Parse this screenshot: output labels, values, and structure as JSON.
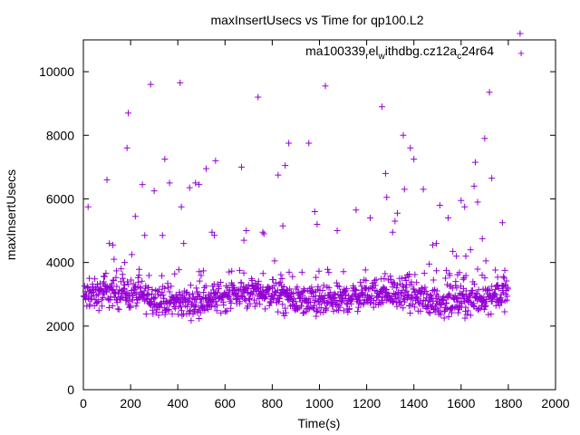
{
  "chart_data": {
    "type": "scatter",
    "title": "maxInsertUsecs vs Time for qp100.L2",
    "xlabel": "Time(s)",
    "ylabel": "maxInsertUsecs",
    "xlim": [
      0,
      2000
    ],
    "ylim": [
      0,
      11000
    ],
    "x_ticks": [
      "0",
      "200",
      "400",
      "600",
      "800",
      "1000",
      "1200",
      "1400",
      "1600",
      "1800",
      "2000"
    ],
    "y_ticks": [
      "0",
      "2000",
      "4000",
      "6000",
      "8000",
      "10000"
    ],
    "grid": false,
    "legend_position": "top-right",
    "marker": "plus",
    "series": [
      {
        "name": "ma100339",
        "name_parts": [
          "ma100339",
          "r",
          "el",
          "w",
          "ithdbg.cz12a",
          "c",
          "24r64"
        ],
        "color": "#9400d3",
        "points": [
          [
            20,
            5750
          ],
          [
            100,
            6600
          ],
          [
            110,
            4600
          ],
          [
            125,
            4550
          ],
          [
            130,
            4100
          ],
          [
            160,
            3800
          ],
          [
            175,
            4000
          ],
          [
            185,
            7600
          ],
          [
            190,
            8700
          ],
          [
            205,
            4250
          ],
          [
            220,
            5450
          ],
          [
            250,
            6450
          ],
          [
            260,
            4850
          ],
          [
            285,
            9600
          ],
          [
            300,
            6250
          ],
          [
            335,
            4850
          ],
          [
            345,
            7250
          ],
          [
            365,
            6500
          ],
          [
            410,
            9650
          ],
          [
            415,
            5750
          ],
          [
            425,
            4600
          ],
          [
            450,
            6350
          ],
          [
            475,
            6500
          ],
          [
            490,
            6450
          ],
          [
            520,
            6950
          ],
          [
            545,
            4950
          ],
          [
            555,
            4850
          ],
          [
            560,
            7200
          ],
          [
            670,
            7000
          ],
          [
            680,
            4700
          ],
          [
            690,
            5000
          ],
          [
            740,
            9200
          ],
          [
            760,
            4950
          ],
          [
            765,
            4900
          ],
          [
            810,
            4050
          ],
          [
            825,
            6750
          ],
          [
            845,
            5150
          ],
          [
            855,
            7050
          ],
          [
            870,
            7750
          ],
          [
            955,
            7750
          ],
          [
            980,
            5600
          ],
          [
            990,
            5200
          ],
          [
            1025,
            9550
          ],
          [
            1075,
            5000
          ],
          [
            1155,
            5650
          ],
          [
            1215,
            5400
          ],
          [
            1265,
            8900
          ],
          [
            1280,
            6800
          ],
          [
            1285,
            6050
          ],
          [
            1310,
            4950
          ],
          [
            1320,
            5300
          ],
          [
            1330,
            5550
          ],
          [
            1355,
            8000
          ],
          [
            1360,
            6300
          ],
          [
            1385,
            7600
          ],
          [
            1400,
            7250
          ],
          [
            1440,
            6300
          ],
          [
            1465,
            3950
          ],
          [
            1480,
            4550
          ],
          [
            1495,
            4600
          ],
          [
            1510,
            5800
          ],
          [
            1545,
            5400
          ],
          [
            1565,
            4350
          ],
          [
            1580,
            4200
          ],
          [
            1600,
            5950
          ],
          [
            1615,
            5750
          ],
          [
            1620,
            4200
          ],
          [
            1640,
            4400
          ],
          [
            1655,
            6400
          ],
          [
            1660,
            7150
          ],
          [
            1670,
            5900
          ],
          [
            1690,
            4750
          ],
          [
            1700,
            7900
          ],
          [
            1705,
            4050
          ],
          [
            1720,
            9350
          ],
          [
            1730,
            6650
          ],
          [
            1775,
            5250
          ],
          [
            1785,
            3750
          ],
          [
            1850,
            11200
          ]
        ],
        "band": {
          "x_range": [
            0,
            1800
          ],
          "typical_range": [
            2400,
            3400
          ],
          "occasional_max": 3800
        }
      }
    ]
  }
}
